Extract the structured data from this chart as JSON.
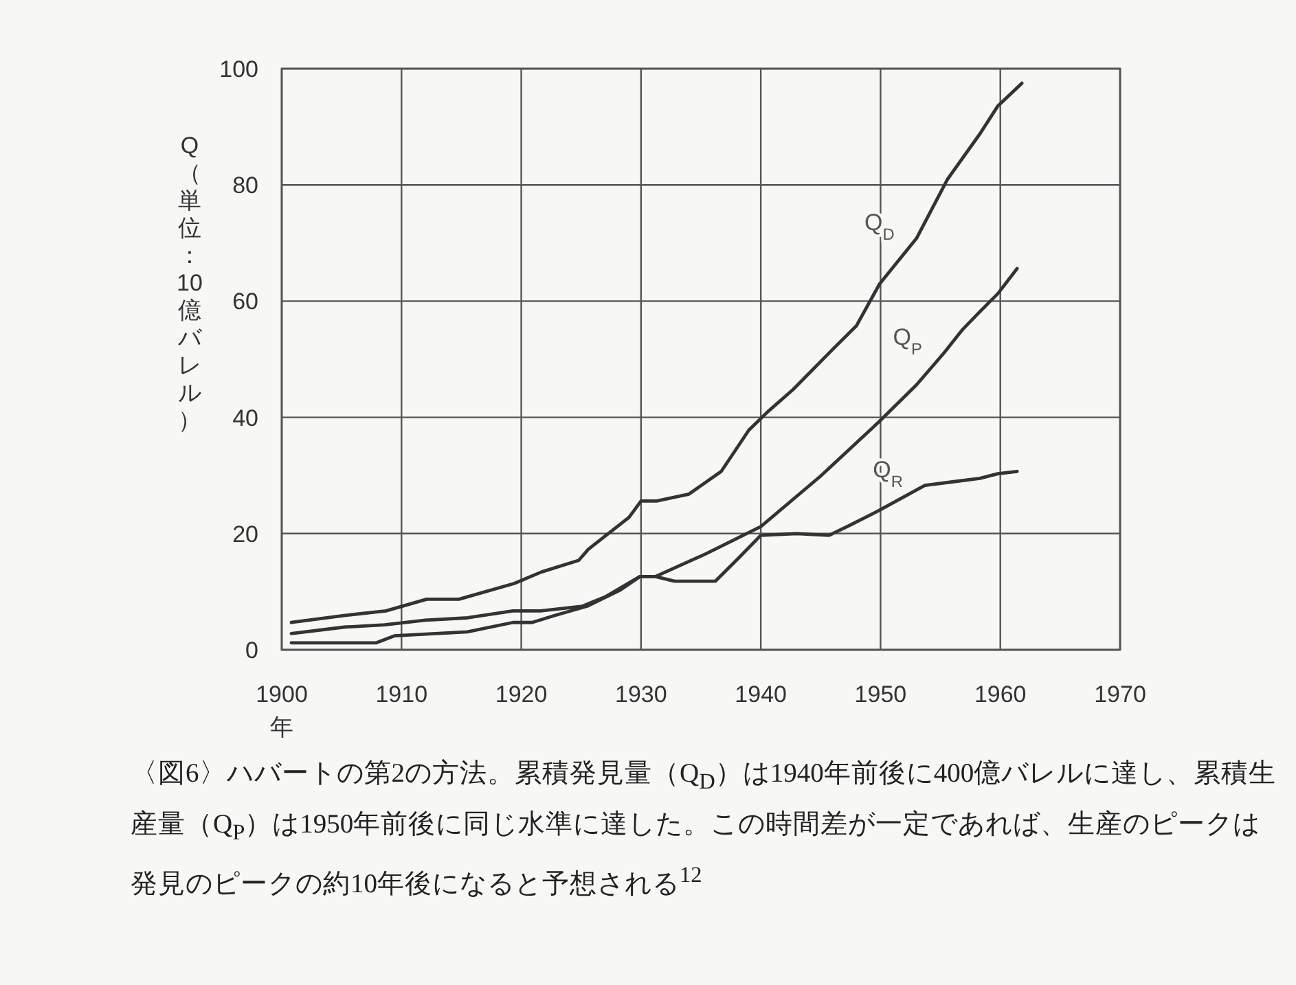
{
  "chart_data": {
    "type": "line",
    "xlabel": "年",
    "ylabel": "Q（単位：10億バレル）",
    "xlim": [
      1900,
      1970
    ],
    "xticks": [
      1900,
      1910,
      1920,
      1930,
      1940,
      1950,
      1960,
      1970
    ],
    "ylim": [
      0,
      100
    ],
    "yticks": [
      0,
      20,
      40,
      60,
      80,
      100
    ],
    "grid": true,
    "marker": "none",
    "line_style": "solid",
    "series": [
      {
        "name": "Q$_{D}$",
        "color": "#333333",
        "x": [
          1900.8,
          1905.2,
          1908.7,
          1912.1,
          1914.8,
          1919.4,
          1921.7,
          1924.8,
          1925.6,
          1929.0,
          1930.0,
          1931.3,
          1934.0,
          1936.7,
          1939.0,
          1940.6,
          1942.7,
          1946.1,
          1948.0,
          1949.9,
          1953.0,
          1955.6,
          1958.3,
          1959.8,
          1961.8
        ],
        "values": [
          4.7,
          5.9,
          6.7,
          8.7,
          8.7,
          11.4,
          13.4,
          15.4,
          17.3,
          22.8,
          25.6,
          25.6,
          26.8,
          30.7,
          37.8,
          41.0,
          44.8,
          51.9,
          55.8,
          62.9,
          70.8,
          81.0,
          88.8,
          93.6,
          97.5
        ]
      },
      {
        "name": "Q$_{P}$",
        "color": "#333333",
        "x": [
          1900.8,
          1905.2,
          1908.6,
          1912.0,
          1915.5,
          1919.3,
          1921.6,
          1925.1,
          1927.0,
          1929.9,
          1931.2,
          1935.4,
          1940.0,
          1945.0,
          1949.9,
          1953.0,
          1955.3,
          1956.8,
          1958.3,
          1959.8,
          1961.4
        ],
        "values": [
          2.8,
          3.9,
          4.3,
          5.1,
          5.5,
          6.7,
          6.7,
          7.5,
          9.1,
          12.6,
          12.6,
          16.5,
          21.2,
          29.9,
          39.3,
          45.6,
          51.1,
          55.0,
          58.2,
          61.3,
          65.6
        ]
      },
      {
        "name": "Q$_{R}$",
        "color": "#333333",
        "x": [
          1900.8,
          1907.9,
          1909.4,
          1915.5,
          1919.3,
          1920.9,
          1922.8,
          1925.5,
          1928.2,
          1929.9,
          1931.2,
          1932.8,
          1936.2,
          1938.1,
          1940.0,
          1943.0,
          1945.7,
          1947.6,
          1949.9,
          1953.7,
          1956.0,
          1958.3,
          1959.8,
          1961.4
        ],
        "values": [
          1.2,
          1.2,
          2.4,
          3.1,
          4.7,
          4.7,
          5.9,
          7.5,
          10.2,
          12.6,
          12.6,
          11.8,
          11.8,
          15.7,
          19.7,
          20.0,
          19.7,
          21.6,
          24.0,
          28.3,
          28.9,
          29.5,
          30.3,
          30.7
        ]
      }
    ],
    "annotations": [
      "〈図6〉ハバートの第2の方法。累積発見量（Q$_{D}$）は1940年前後に400億バレルに達し、累積生産量（Q$_{P}$）は1950年前後に同じ水準に達した。この時間差が一定であれば、生産のピークは発見のピークの約10年後になると予想される$^{12}$"
    ]
  }
}
